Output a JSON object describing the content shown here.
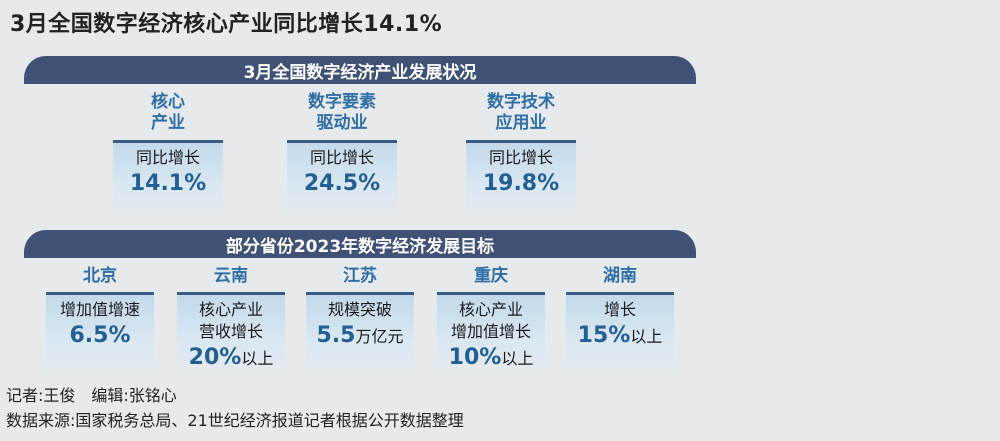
{
  "title": "3月全国数字经济核心产业同比增长14.1%",
  "section1": {
    "heading": "3月全国数字经济产业发展状况",
    "cards": [
      {
        "label_line1": "核心",
        "label_line2": "产业",
        "desc": "同比增长",
        "value": "14.1%"
      },
      {
        "label_line1": "数字要素",
        "label_line2": "驱动业",
        "desc": "同比增长",
        "value": "24.5%"
      },
      {
        "label_line1": "数字技术",
        "label_line2": "应用业",
        "desc": "同比增长",
        "value": "19.8%"
      }
    ]
  },
  "section2": {
    "heading": "部分省份2023年数字经济发展目标",
    "cards": [
      {
        "label": "北京",
        "desc_line1": "增加值增速",
        "desc_line2": "",
        "value": "6.5%",
        "unit": ""
      },
      {
        "label": "云南",
        "desc_line1": "核心产业",
        "desc_line2": "营收增长",
        "value": "20%",
        "unit": "以上"
      },
      {
        "label": "江苏",
        "desc_line1": "规模突破",
        "desc_line2": "",
        "value": "5.5",
        "unit": "万亿元"
      },
      {
        "label": "重庆",
        "desc_line1": "核心产业",
        "desc_line2": "增加值增长",
        "value": "10%",
        "unit": "以上"
      },
      {
        "label": "湖南",
        "desc_line1": "增长",
        "desc_line2": "",
        "value": "15%",
        "unit": "以上"
      }
    ]
  },
  "footer": {
    "credits": "记者:王俊　编辑:张铭心",
    "source": "数据来源:国家税务总局、21世纪经济报道记者根据公开数据整理"
  }
}
